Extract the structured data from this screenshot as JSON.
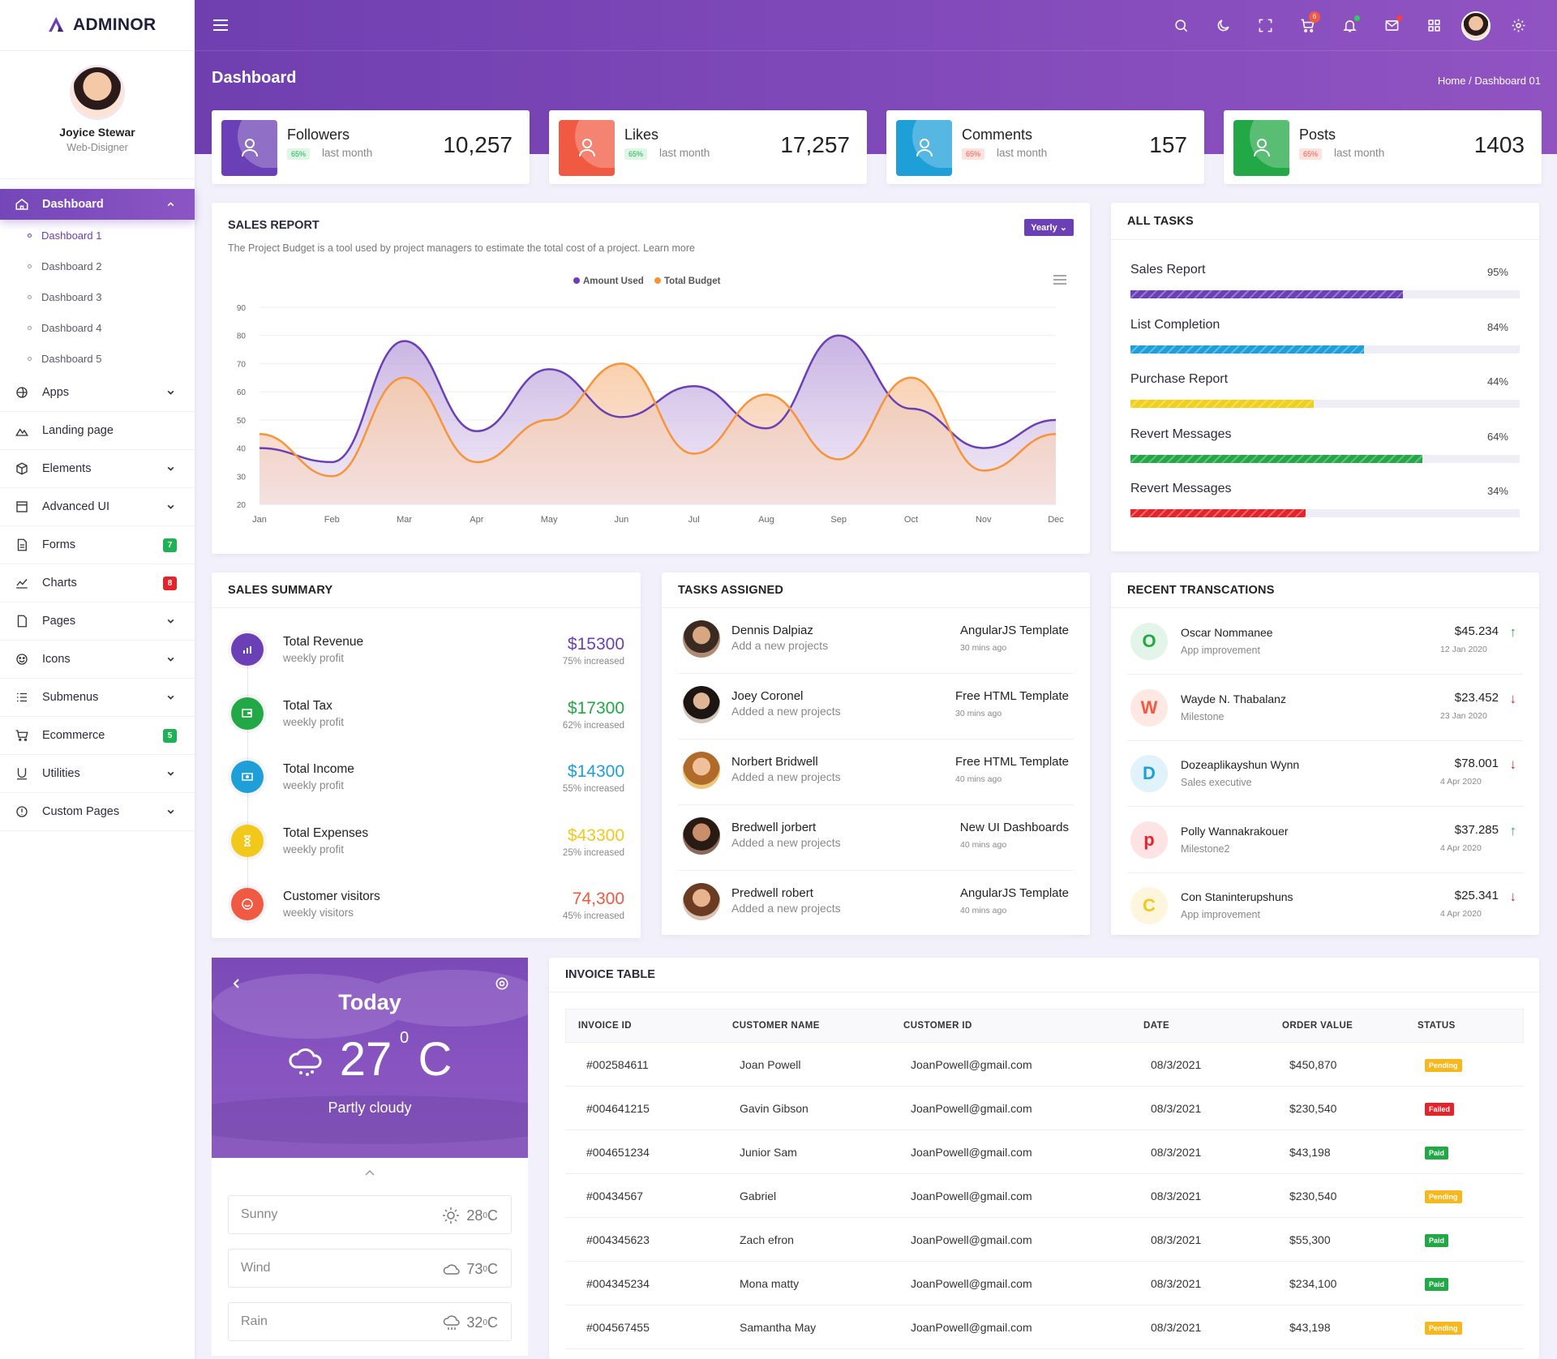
{
  "brand": {
    "name": "ADMINOR"
  },
  "profile": {
    "name": "Joyice Stewar",
    "role": "Web-Disigner"
  },
  "sidebar": {
    "active": "Dashboard",
    "sub": [
      "Dashboard 1",
      "Dashboard 2",
      "Dashboard 3",
      "Dashboard 4",
      "Dashboard 5"
    ],
    "items": [
      {
        "label": "Apps",
        "icon": "apps-icon",
        "chev": true
      },
      {
        "label": "Landing page",
        "icon": "landing-icon"
      },
      {
        "label": "Elements",
        "icon": "elements-icon",
        "chev": true
      },
      {
        "label": "Advanced UI",
        "icon": "advanced-ui-icon",
        "chev": true
      },
      {
        "label": "Forms",
        "icon": "forms-icon",
        "badge": "7",
        "badgeColor": "#1fb155"
      },
      {
        "label": "Charts",
        "icon": "charts-icon",
        "badge": "8",
        "badgeColor": "#e4242b"
      },
      {
        "label": "Pages",
        "icon": "pages-icon",
        "chev": true
      },
      {
        "label": "Icons",
        "icon": "icons-icon",
        "chev": true
      },
      {
        "label": "Submenus",
        "icon": "submenus-icon",
        "chev": true
      },
      {
        "label": "Ecommerce",
        "icon": "ecommerce-icon",
        "badge": "5",
        "badgeColor": "#1fb155"
      },
      {
        "label": "Utilities",
        "icon": "utilities-icon",
        "chev": true
      },
      {
        "label": "Custom Pages",
        "icon": "custom-pages-icon",
        "chev": true
      }
    ]
  },
  "header": {
    "title": "Dashboard",
    "breadcrumb": "Home  /  Dashboard 01",
    "cart_count": "6"
  },
  "stats": [
    {
      "label": "Followers",
      "pct": "65%",
      "sub": "last month",
      "value": "10,257",
      "color": "#6b3fb5",
      "pctBg": "#dff5e5",
      "pctColor": "#1fb155"
    },
    {
      "label": "Likes",
      "pct": "65%",
      "sub": "last month",
      "value": "17,257",
      "color": "#f15a42",
      "pctBg": "#dff5e5",
      "pctColor": "#1fb155"
    },
    {
      "label": "Comments",
      "pct": "65%",
      "sub": "last month",
      "value": "157",
      "color": "#1e9fd8",
      "pctBg": "#fde2df",
      "pctColor": "#f15a42"
    },
    {
      "label": "Posts",
      "pct": "65%",
      "sub": "last month",
      "value": "1403",
      "color": "#22a846",
      "pctBg": "#fde2df",
      "pctColor": "#f15a42"
    }
  ],
  "sales_report": {
    "title": "SALES REPORT",
    "desc": "The Project Budget is a tool used by project managers to estimate the total cost of a project. Learn more",
    "button": "Yearly"
  },
  "chart_data": {
    "type": "area",
    "categories": [
      "Jan",
      "Feb",
      "Mar",
      "Apr",
      "May",
      "Jun",
      "Jul",
      "Aug",
      "Sep",
      "Oct",
      "Nov",
      "Dec"
    ],
    "series": [
      {
        "name": "Amount Used",
        "color": "#6b3fb5",
        "values": [
          40,
          35,
          78,
          46,
          68,
          51,
          62,
          47,
          80,
          54,
          40,
          50
        ]
      },
      {
        "name": "Total Budget",
        "color": "#f7943a",
        "values": [
          45,
          30,
          65,
          35,
          50,
          70,
          38,
          59,
          36,
          65,
          32,
          45
        ]
      }
    ],
    "yticks": [
      "90",
      "80",
      "70",
      "60",
      "50",
      "40",
      "30",
      "20"
    ],
    "ylim": [
      20,
      90
    ]
  },
  "all_tasks": {
    "title": "ALL TASKS",
    "items": [
      {
        "label": "Sales Report",
        "pct": "95%",
        "fill": 70,
        "color": "#6b3fb5"
      },
      {
        "label": "List Completion",
        "pct": "84%",
        "fill": 60,
        "color": "#1e9fd8"
      },
      {
        "label": "Purchase Report",
        "pct": "44%",
        "fill": 47,
        "color": "#f2cf19"
      },
      {
        "label": "Revert Messages",
        "pct": "64%",
        "fill": 75,
        "color": "#22a846"
      },
      {
        "label": "Revert Messages",
        "pct": "34%",
        "fill": 45,
        "color": "#e4242b"
      }
    ]
  },
  "sales_summary": {
    "title": "SALES SUMMARY",
    "items": [
      {
        "title": "Total Revenue",
        "sub": "weekly profit",
        "value": "$15300",
        "inc": "75% increased",
        "color": "#6b3fb5"
      },
      {
        "title": "Total Tax",
        "sub": "weekly profit",
        "value": "$17300",
        "inc": "62% increased",
        "color": "#22a846"
      },
      {
        "title": "Total Income",
        "sub": "weekly profit",
        "value": "$14300",
        "inc": "55% increased",
        "color": "#1e9fd8"
      },
      {
        "title": "Total Expenses",
        "sub": "weekly profit",
        "value": "$43300",
        "inc": "25% increased",
        "color": "#f2c81a"
      },
      {
        "title": "Customer visitors",
        "sub": "weekly visitors",
        "value": "74,300",
        "inc": "45% increased",
        "color": "#f15a42"
      }
    ]
  },
  "tasks_assigned": {
    "title": "TASKS ASSIGNED",
    "items": [
      {
        "name": "Dennis Dalpiaz",
        "sub": "Add a new projects",
        "tpl": "AngularJS Template",
        "time": "30 mins ago"
      },
      {
        "name": "Joey Coronel",
        "sub": "Added a new projects",
        "tpl": "Free HTML Template",
        "time": "30 mins ago"
      },
      {
        "name": "Norbert Bridwell",
        "sub": "Added a new projects",
        "tpl": "Free HTML Template",
        "time": "40 mins ago"
      },
      {
        "name": "Bredwell jorbert",
        "sub": "Added a new projects",
        "tpl": "New UI Dashboards",
        "time": "40 mins ago"
      },
      {
        "name": "Predwell robert",
        "sub": "Added a new projects",
        "tpl": "AngularJS Template",
        "time": "40 mins ago"
      }
    ]
  },
  "recent_transactions": {
    "title": "RECENT TRANSCATIONS",
    "items": [
      {
        "initial": "O",
        "name": "Oscar Nommanee",
        "sub": "App improvement",
        "amt": "$45.234",
        "date": "12 Jan 2020",
        "dir": "up",
        "color": "#22a846",
        "bg": "#e2f5e8"
      },
      {
        "initial": "W",
        "name": "Wayde N. Thabalanz",
        "sub": "Milestone",
        "amt": "$23.452",
        "date": "23 Jan 2020",
        "dir": "down",
        "color": "#f15a42",
        "bg": "#fde8e4"
      },
      {
        "initial": "D",
        "name": "Dozeaplikayshun Wynn",
        "sub": "Sales executive",
        "amt": "$78.001",
        "date": "4 Apr 2020",
        "dir": "down",
        "color": "#1e9fd8",
        "bg": "#e0f3fb"
      },
      {
        "initial": "p",
        "name": "Polly Wannakrakouer",
        "sub": "Milestone2",
        "amt": "$37.285",
        "date": "4 Apr 2020",
        "dir": "up",
        "color": "#e4242b",
        "bg": "#fde3e4"
      },
      {
        "initial": "C",
        "name": "Con Staninterupshuns",
        "sub": "App improvement",
        "amt": "$25.341",
        "date": "4 Apr 2020",
        "dir": "down",
        "color": "#f2c81a",
        "bg": "#fdf6dc"
      }
    ]
  },
  "weather": {
    "today": "Today",
    "temp": "27",
    "unit": "C",
    "deg": "0",
    "desc": "Partly cloudy",
    "items": [
      {
        "label": "Sunny",
        "value": "28",
        "icon": "sun-icon"
      },
      {
        "label": "Wind",
        "value": "73",
        "icon": "cloud-icon"
      },
      {
        "label": "Rain",
        "value": "32",
        "icon": "rain-icon"
      }
    ]
  },
  "invoice": {
    "title": "INVOICE TABLE",
    "columns": [
      "INVOICE ID",
      "CUSTOMER NAME",
      "CUSTOMER ID",
      "DATE",
      "ORDER VALUE",
      "STATUS"
    ],
    "rows": [
      [
        "#002584611",
        "Joan Powell",
        "JoanPowell@gmail.com",
        "08/3/2021",
        "$450,870",
        "Pending"
      ],
      [
        "#004641215",
        "Gavin Gibson",
        "JoanPowell@gmail.com",
        "08/3/2021",
        "$230,540",
        "Failed"
      ],
      [
        "#004651234",
        "Junior Sam",
        "JoanPowell@gmail.com",
        "08/3/2021",
        "$43,198",
        "Paid"
      ],
      [
        "#00434567",
        "Gabriel",
        "JoanPowell@gmail.com",
        "08/3/2021",
        "$230,540",
        "Pending"
      ],
      [
        "#004345623",
        "Zach efron",
        "JoanPowell@gmail.com",
        "08/3/2021",
        "$55,300",
        "Paid"
      ],
      [
        "#004345234",
        "Mona matty",
        "JoanPowell@gmail.com",
        "08/3/2021",
        "$234,100",
        "Paid"
      ],
      [
        "#004567455",
        "Samantha May",
        "JoanPowell@gmail.com",
        "08/3/2021",
        "$43,198",
        "Pending"
      ]
    ],
    "statusColors": {
      "Pending": "#f7b81e",
      "Failed": "#e4242b",
      "Paid": "#22a846"
    }
  }
}
